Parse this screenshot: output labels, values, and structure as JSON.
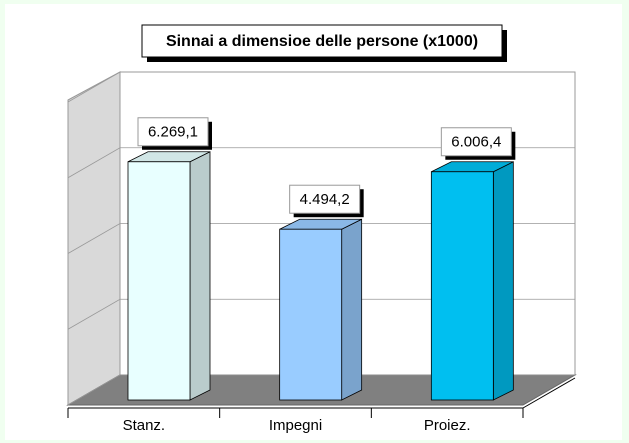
{
  "chart_data": {
    "type": "bar3d",
    "title": "Sinnai a dimensioe delle persone (x1000)",
    "categories": [
      "Stanz.",
      "Impegni",
      "Proiez."
    ],
    "values": [
      6269.1,
      4494.2,
      6006.4
    ],
    "value_labels": [
      "6.269,1",
      "4.494,2",
      "6.006,4"
    ],
    "colors": [
      "#e8ffff",
      "#99ccff",
      "#00bff0"
    ],
    "ylim": [
      0,
      8000
    ],
    "yticks": [
      0,
      2000,
      4000,
      6000,
      8000
    ],
    "grid": true
  }
}
